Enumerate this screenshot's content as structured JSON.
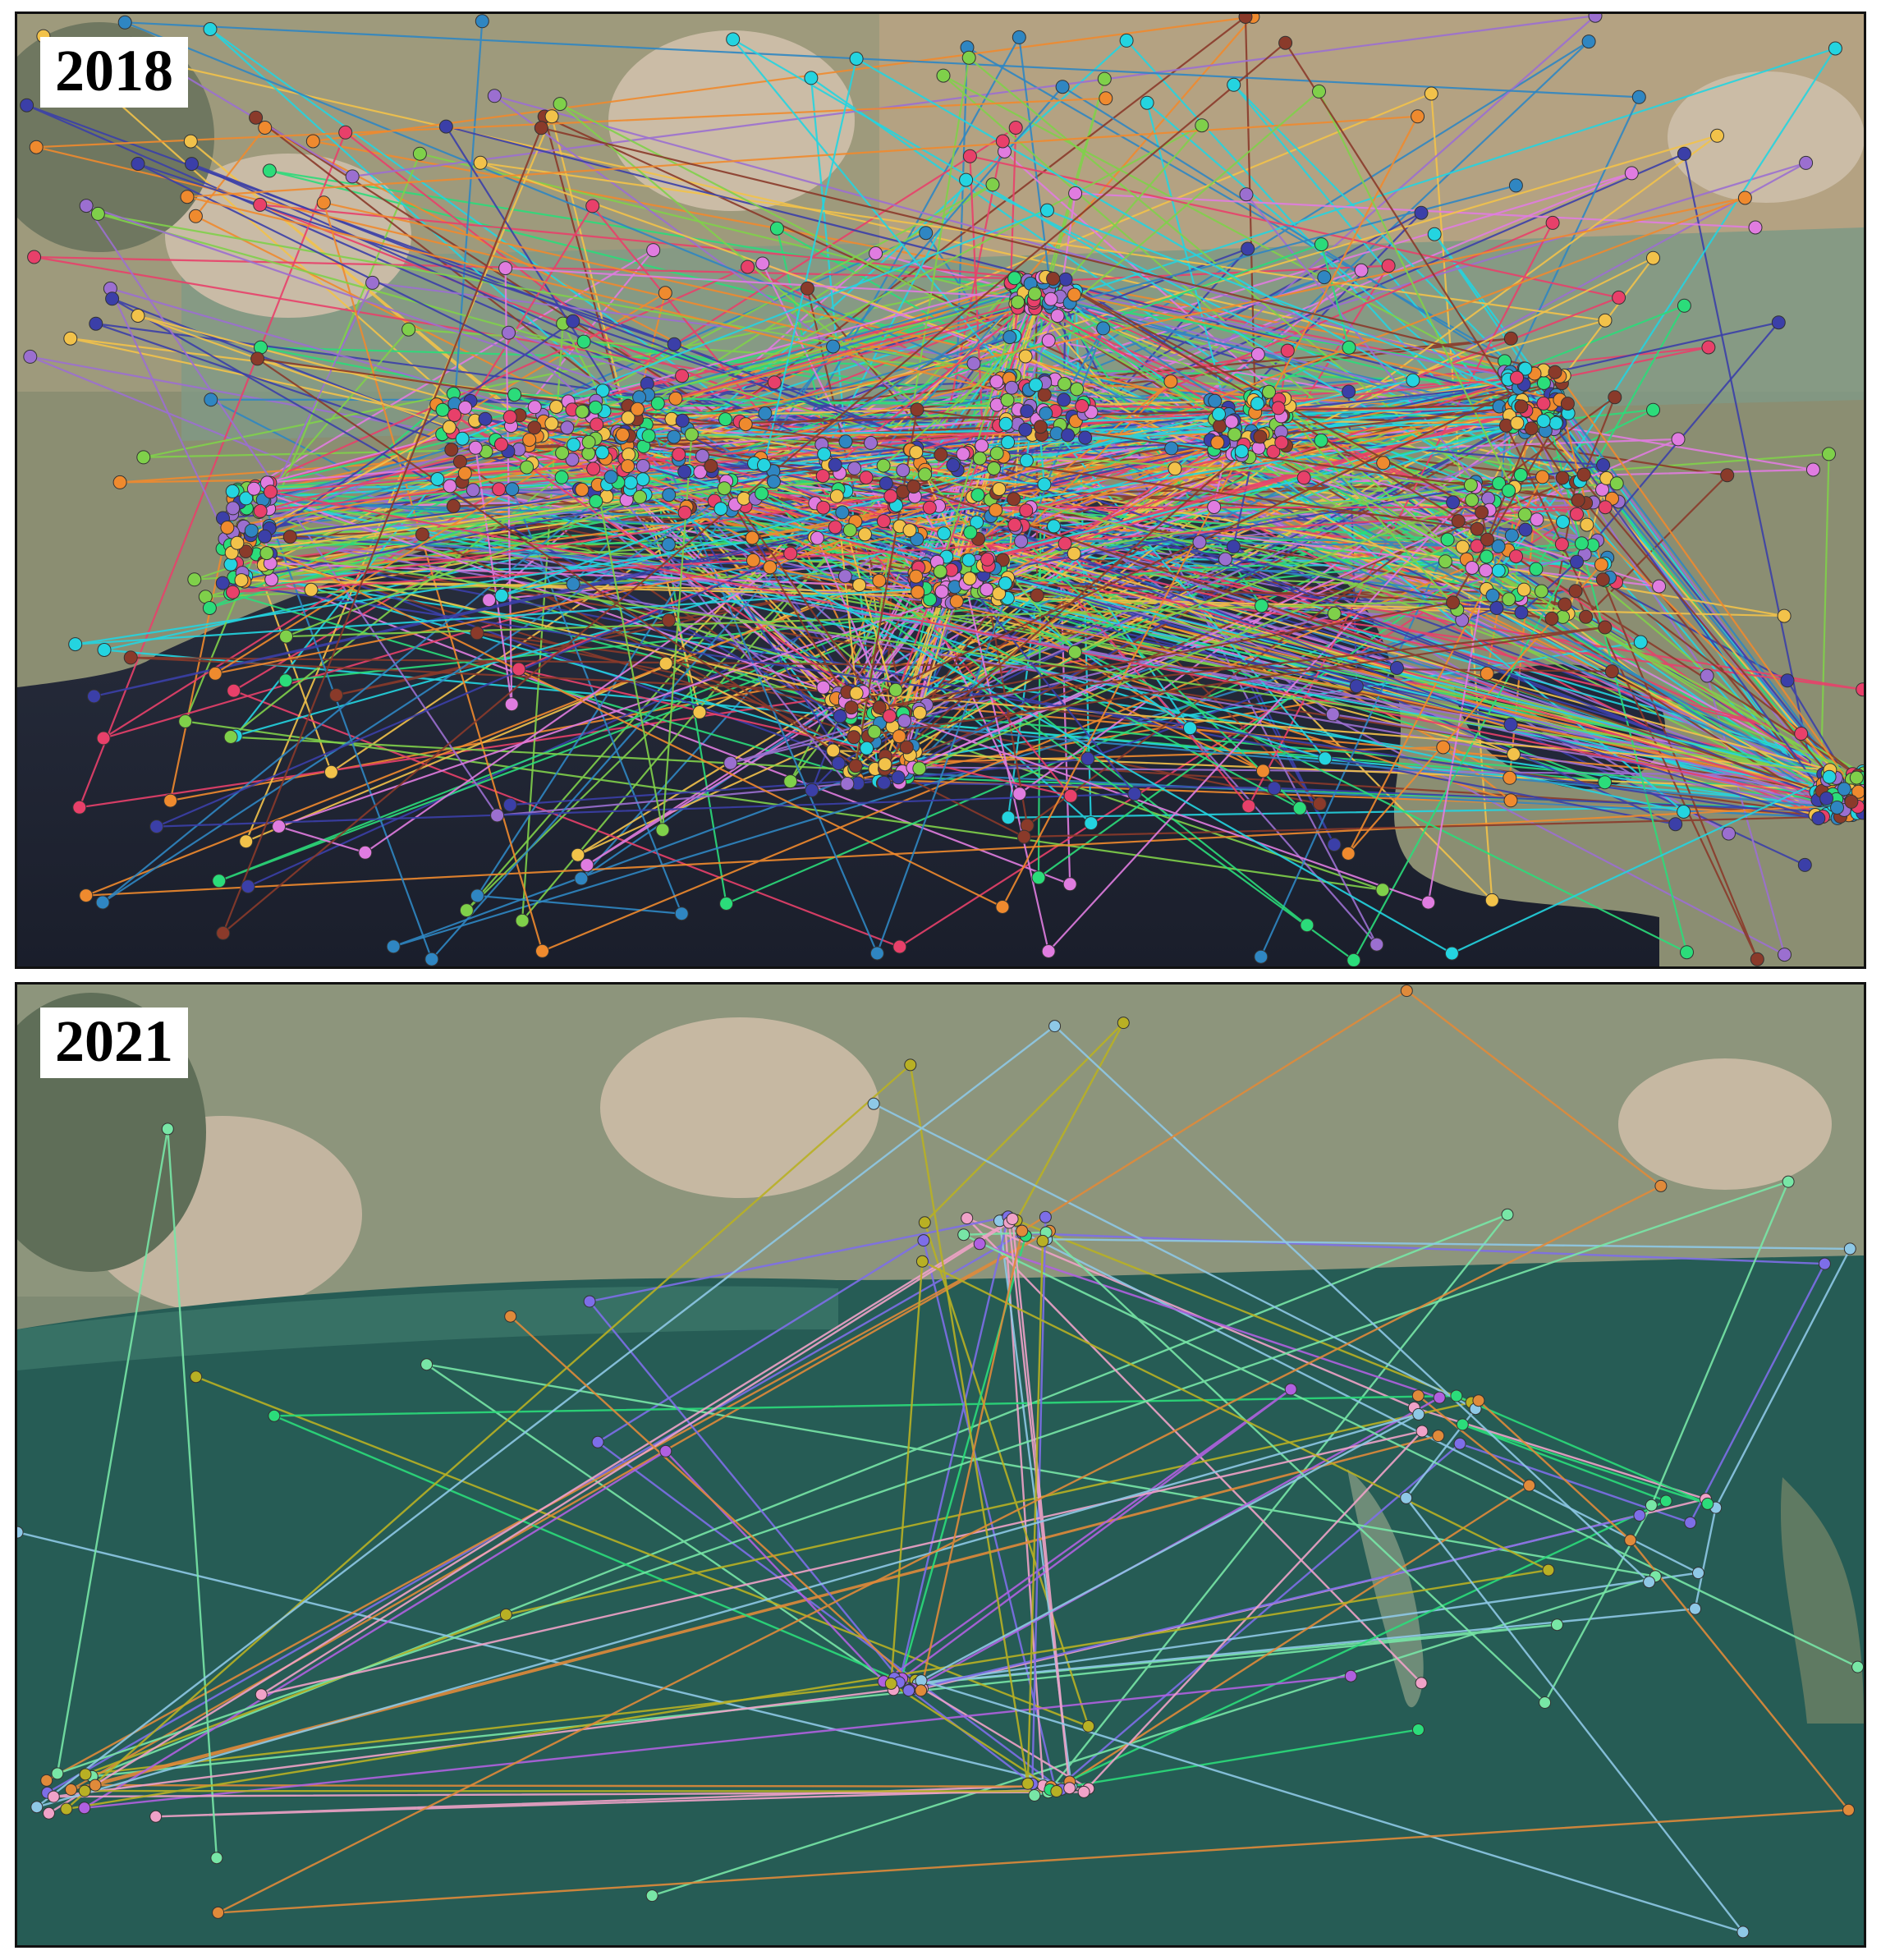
{
  "figure": {
    "panels": [
      {
        "year_label": "2018",
        "tracks_shown": "dense"
      },
      {
        "year_label": "2021",
        "tracks_shown": "sparse"
      }
    ],
    "track_colors": {
      "2018": [
        "#9b6fd0",
        "#2bdc7a",
        "#2f86c2",
        "#e07ce0",
        "#f2c24a",
        "#3b3fa8",
        "#ef8a2e",
        "#e8406a",
        "#24d4e0",
        "#7fd04a",
        "#8a3a2a"
      ],
      "2021": [
        "#7d6ee8",
        "#78e6a6",
        "#f0a2c8",
        "#b8b024",
        "#8ec8e6",
        "#e08a3a",
        "#2bdc7a",
        "#b060e0"
      ]
    },
    "basemap": {
      "land": "#8a8f74",
      "farmland": "#b9a788",
      "village": "#c9b9a4",
      "water_2018": "#1c2130",
      "water_2021": "#255a52"
    }
  }
}
